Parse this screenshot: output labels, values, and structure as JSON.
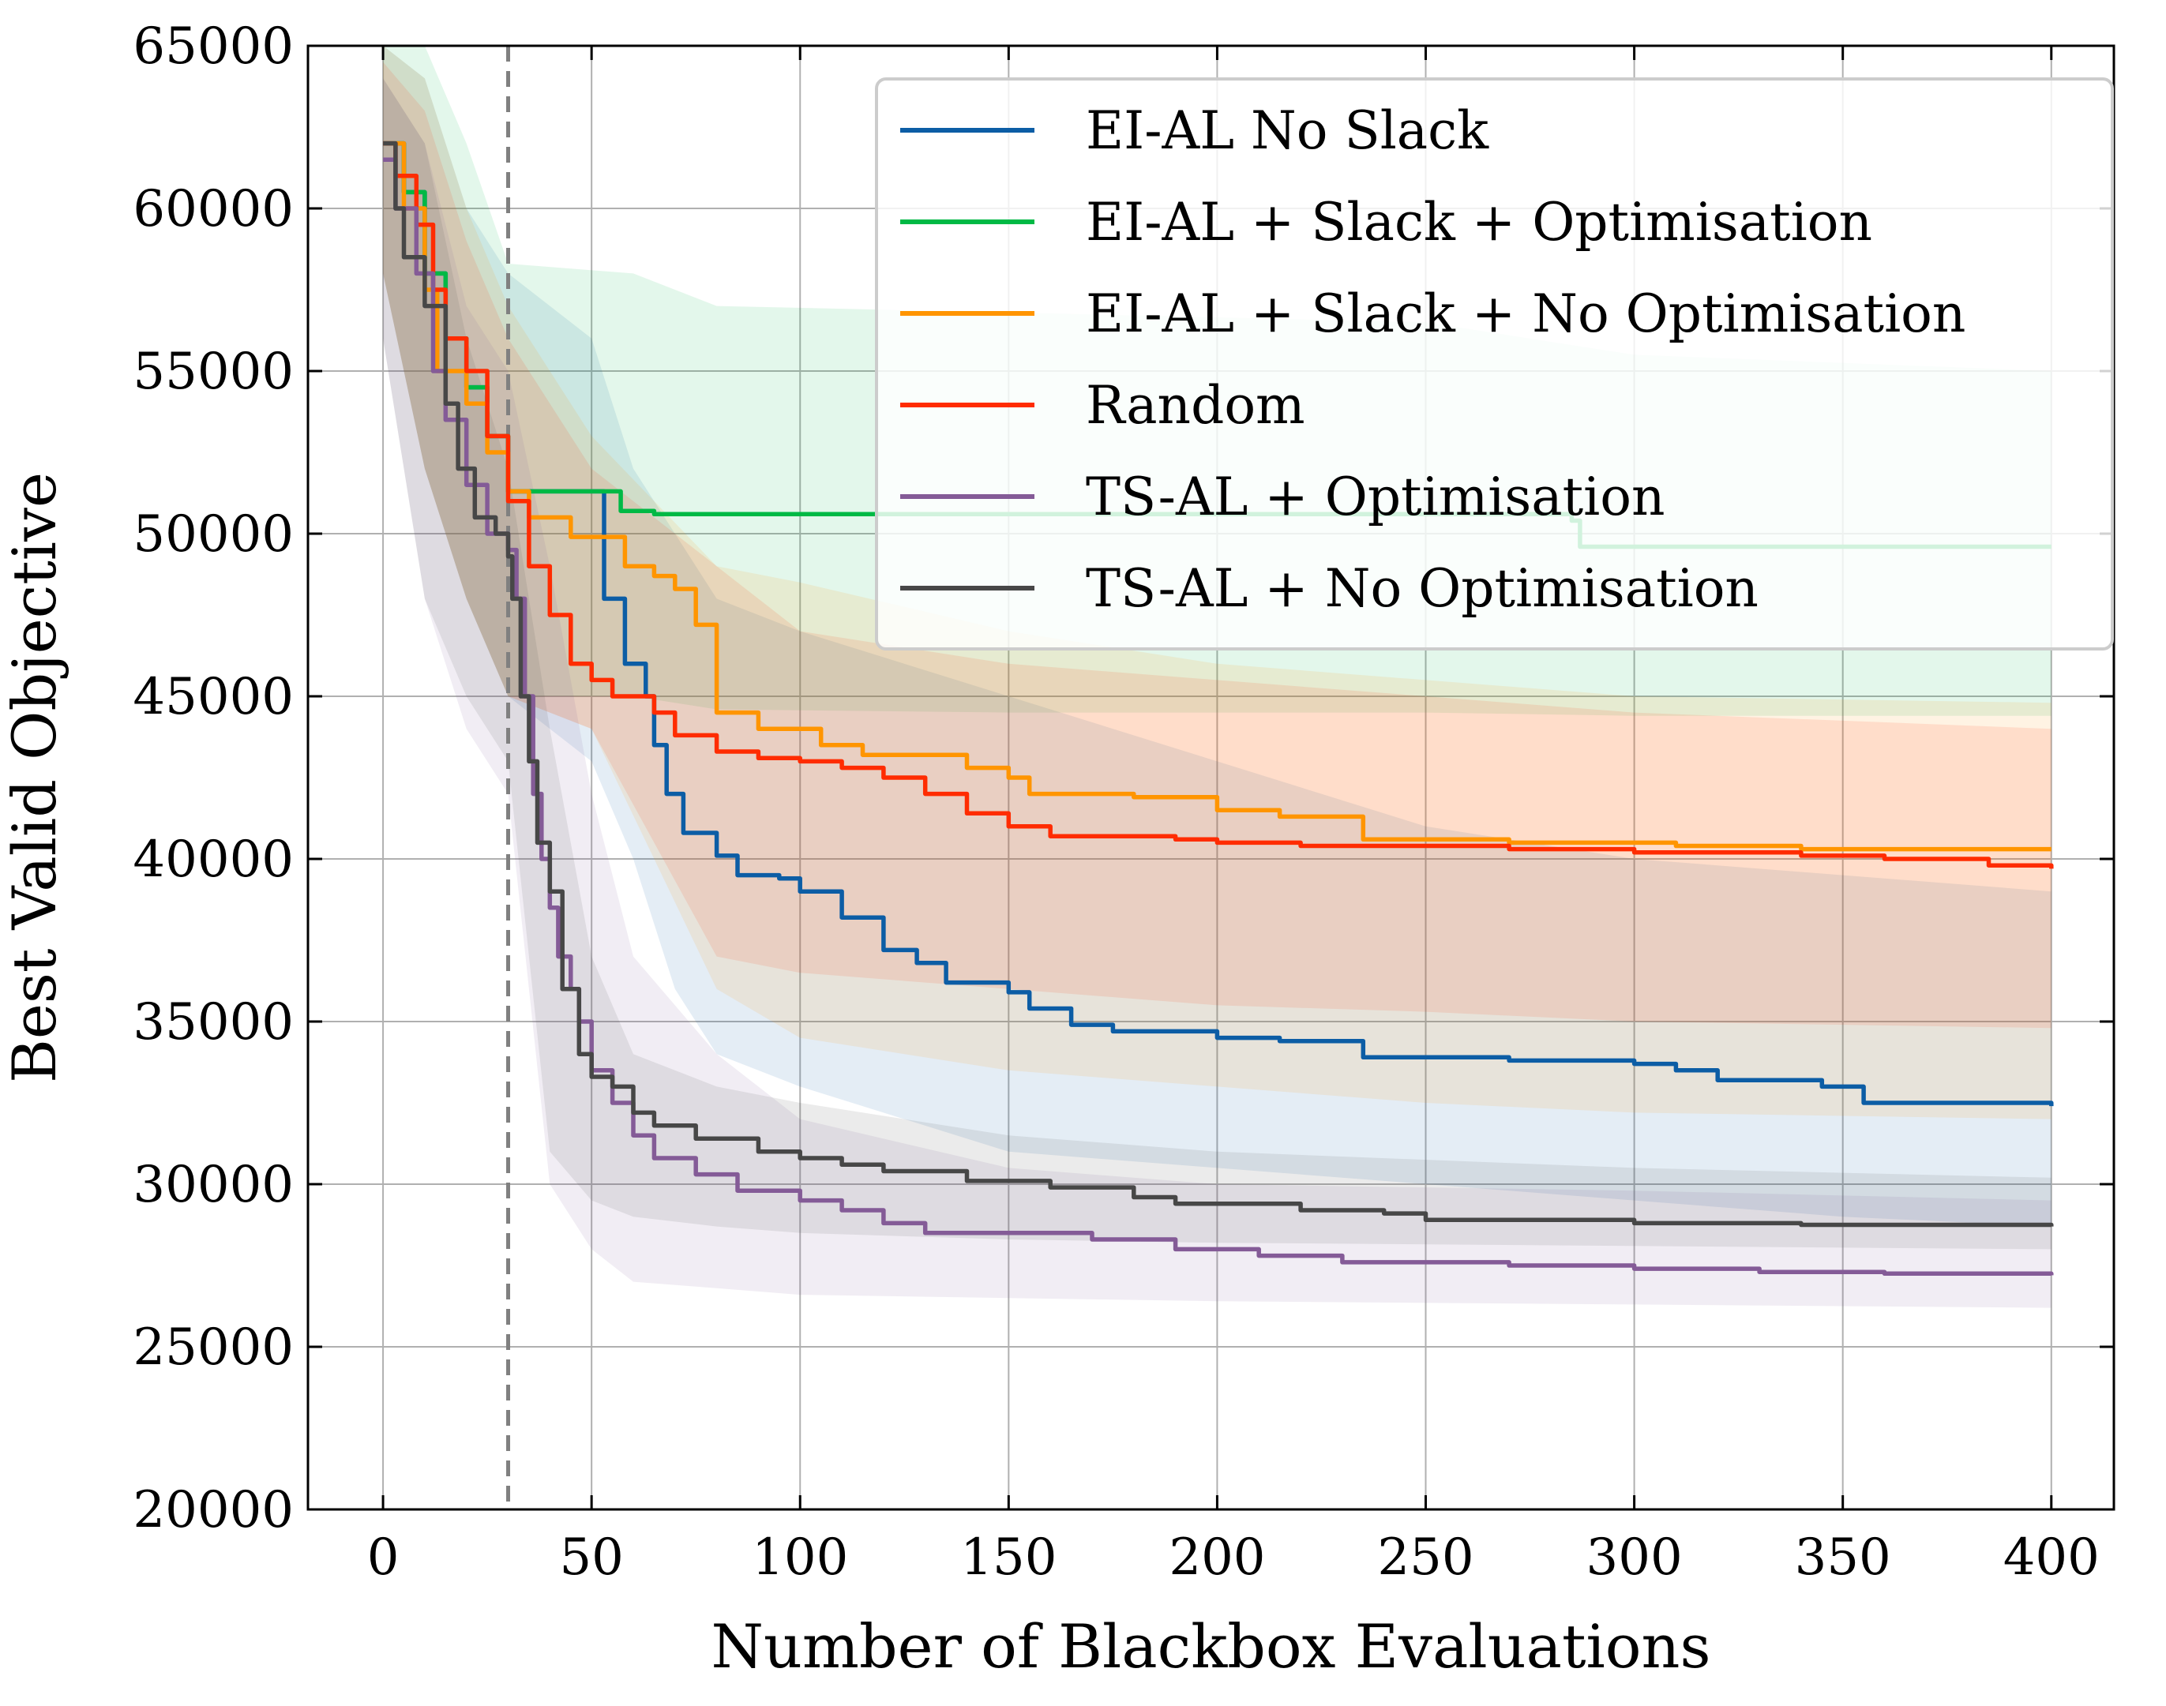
{
  "chart_data": {
    "type": "line",
    "title": "",
    "xlabel": "Number of Blackbox Evaluations",
    "ylabel": "Best Valid Objective",
    "xlim": [
      -18,
      415
    ],
    "ylim": [
      20000,
      65000
    ],
    "x_ticks": [
      0,
      50,
      100,
      150,
      200,
      250,
      300,
      350,
      400
    ],
    "y_ticks": [
      20000,
      25000,
      30000,
      35000,
      40000,
      45000,
      50000,
      55000,
      60000,
      65000
    ],
    "x_tick_labels": [
      "0",
      "50",
      "100",
      "150",
      "200",
      "250",
      "300",
      "350",
      "400"
    ],
    "y_tick_labels": [
      "20000",
      "25000",
      "30000",
      "35000",
      "40000",
      "45000",
      "50000",
      "55000",
      "60000",
      "65000"
    ],
    "grid": true,
    "legend_position": "top-right",
    "vline": {
      "x": 30,
      "style": "dashed",
      "color": "#808080"
    },
    "series": [
      {
        "name": "EI-AL No Slack",
        "color": "#0c5da5",
        "points": [
          [
            0,
            62000
          ],
          [
            5,
            60500
          ],
          [
            10,
            58000
          ],
          [
            15,
            56000
          ],
          [
            20,
            54500
          ],
          [
            25,
            53000
          ],
          [
            30,
            51300
          ],
          [
            50,
            51300
          ],
          [
            53,
            48000
          ],
          [
            58,
            46000
          ],
          [
            63,
            45000
          ],
          [
            65,
            43500
          ],
          [
            68,
            42000
          ],
          [
            72,
            40800
          ],
          [
            80,
            40100
          ],
          [
            85,
            39500
          ],
          [
            95,
            39400
          ],
          [
            100,
            39000
          ],
          [
            110,
            38200
          ],
          [
            120,
            37200
          ],
          [
            128,
            36800
          ],
          [
            135,
            36200
          ],
          [
            150,
            35900
          ],
          [
            155,
            35400
          ],
          [
            165,
            34900
          ],
          [
            175,
            34700
          ],
          [
            200,
            34500
          ],
          [
            215,
            34400
          ],
          [
            235,
            33900
          ],
          [
            270,
            33800
          ],
          [
            300,
            33700
          ],
          [
            310,
            33500
          ],
          [
            320,
            33200
          ],
          [
            345,
            33000
          ],
          [
            355,
            32500
          ],
          [
            400,
            32400
          ]
        ],
        "band": [
          [
            0,
            65000,
            58000
          ],
          [
            10,
            64000,
            52000
          ],
          [
            20,
            60000,
            48000
          ],
          [
            30,
            58000,
            45000
          ],
          [
            50,
            56000,
            43000
          ],
          [
            60,
            52000,
            40000
          ],
          [
            70,
            50000,
            36000
          ],
          [
            80,
            48000,
            34000
          ],
          [
            100,
            47000,
            33000
          ],
          [
            150,
            45000,
            31000
          ],
          [
            200,
            43000,
            30500
          ],
          [
            250,
            41000,
            30000
          ],
          [
            300,
            40000,
            29500
          ],
          [
            350,
            39500,
            29000
          ],
          [
            400,
            39000,
            28700
          ]
        ]
      },
      {
        "name": "EI-AL + Slack + Optimisation",
        "color": "#00b945",
        "points": [
          [
            0,
            62000
          ],
          [
            5,
            60500
          ],
          [
            10,
            58000
          ],
          [
            15,
            56000
          ],
          [
            20,
            54500
          ],
          [
            25,
            53000
          ],
          [
            30,
            51300
          ],
          [
            55,
            51300
          ],
          [
            57,
            50700
          ],
          [
            65,
            50600
          ],
          [
            120,
            50600
          ],
          [
            140,
            50600
          ],
          [
            285,
            50400
          ],
          [
            287,
            49600
          ],
          [
            400,
            49600
          ]
        ],
        "band": [
          [
            0,
            65000,
            58000
          ],
          [
            10,
            65000,
            52000
          ],
          [
            20,
            62000,
            48000
          ],
          [
            30,
            58300,
            45000
          ],
          [
            60,
            58000,
            45000
          ],
          [
            80,
            57000,
            44600
          ],
          [
            150,
            56800,
            44500
          ],
          [
            250,
            56500,
            44500
          ],
          [
            300,
            55500,
            44400
          ],
          [
            400,
            55000,
            44400
          ]
        ]
      },
      {
        "name": "EI-AL + Slack + No Optimisation",
        "color": "#ff9500",
        "points": [
          [
            0,
            62000
          ],
          [
            5,
            60000
          ],
          [
            10,
            57500
          ],
          [
            13,
            55000
          ],
          [
            20,
            54000
          ],
          [
            25,
            52500
          ],
          [
            30,
            51300
          ],
          [
            35,
            50500
          ],
          [
            45,
            49900
          ],
          [
            50,
            49900
          ],
          [
            58,
            49000
          ],
          [
            65,
            48700
          ],
          [
            70,
            48300
          ],
          [
            75,
            47200
          ],
          [
            80,
            44500
          ],
          [
            90,
            44000
          ],
          [
            105,
            43500
          ],
          [
            115,
            43200
          ],
          [
            140,
            42800
          ],
          [
            150,
            42500
          ],
          [
            155,
            42000
          ],
          [
            180,
            41900
          ],
          [
            200,
            41500
          ],
          [
            215,
            41300
          ],
          [
            235,
            40600
          ],
          [
            270,
            40500
          ],
          [
            310,
            40400
          ],
          [
            340,
            40300
          ],
          [
            400,
            40300
          ]
        ],
        "band": [
          [
            0,
            65000,
            58000
          ],
          [
            10,
            64000,
            52000
          ],
          [
            20,
            60000,
            48000
          ],
          [
            30,
            57000,
            45000
          ],
          [
            50,
            53000,
            44000
          ],
          [
            80,
            49000,
            36000
          ],
          [
            100,
            48500,
            34500
          ],
          [
            150,
            47000,
            33500
          ],
          [
            200,
            46000,
            33000
          ],
          [
            250,
            45500,
            32500
          ],
          [
            300,
            45000,
            32200
          ],
          [
            400,
            44800,
            32000
          ]
        ]
      },
      {
        "name": "Random",
        "color": "#ff2c00",
        "points": [
          [
            0,
            62000
          ],
          [
            3,
            61000
          ],
          [
            8,
            59500
          ],
          [
            12,
            57500
          ],
          [
            15,
            56000
          ],
          [
            20,
            55000
          ],
          [
            25,
            53000
          ],
          [
            30,
            51000
          ],
          [
            35,
            49000
          ],
          [
            40,
            47500
          ],
          [
            45,
            46000
          ],
          [
            50,
            45500
          ],
          [
            55,
            45000
          ],
          [
            65,
            44500
          ],
          [
            70,
            43800
          ],
          [
            80,
            43300
          ],
          [
            90,
            43100
          ],
          [
            100,
            43000
          ],
          [
            110,
            42800
          ],
          [
            120,
            42500
          ],
          [
            130,
            42000
          ],
          [
            140,
            41400
          ],
          [
            150,
            41000
          ],
          [
            160,
            40700
          ],
          [
            190,
            40600
          ],
          [
            200,
            40500
          ],
          [
            220,
            40400
          ],
          [
            270,
            40300
          ],
          [
            300,
            40200
          ],
          [
            340,
            40100
          ],
          [
            360,
            40000
          ],
          [
            385,
            39800
          ],
          [
            400,
            39700
          ]
        ],
        "band": [
          [
            0,
            64500,
            58000
          ],
          [
            10,
            63000,
            52000
          ],
          [
            20,
            59000,
            48000
          ],
          [
            30,
            56000,
            45000
          ],
          [
            50,
            52000,
            44000
          ],
          [
            80,
            49000,
            37000
          ],
          [
            100,
            47000,
            36500
          ],
          [
            150,
            46000,
            36000
          ],
          [
            200,
            45500,
            35500
          ],
          [
            250,
            45000,
            35300
          ],
          [
            300,
            44500,
            35000
          ],
          [
            400,
            44000,
            34800
          ]
        ]
      },
      {
        "name": "TS-AL + Optimisation",
        "color": "#845b97",
        "points": [
          [
            0,
            61500
          ],
          [
            3,
            60000
          ],
          [
            8,
            58000
          ],
          [
            12,
            55000
          ],
          [
            15,
            53500
          ],
          [
            20,
            51500
          ],
          [
            25,
            50000
          ],
          [
            30,
            49500
          ],
          [
            32,
            48000
          ],
          [
            34,
            45000
          ],
          [
            36,
            42000
          ],
          [
            38,
            40000
          ],
          [
            40,
            38500
          ],
          [
            42,
            37000
          ],
          [
            45,
            36000
          ],
          [
            47,
            35000
          ],
          [
            50,
            33500
          ],
          [
            55,
            32500
          ],
          [
            60,
            31500
          ],
          [
            65,
            30800
          ],
          [
            75,
            30300
          ],
          [
            85,
            29800
          ],
          [
            100,
            29500
          ],
          [
            110,
            29200
          ],
          [
            120,
            28800
          ],
          [
            130,
            28500
          ],
          [
            170,
            28300
          ],
          [
            190,
            28000
          ],
          [
            210,
            27800
          ],
          [
            230,
            27600
          ],
          [
            270,
            27500
          ],
          [
            300,
            27400
          ],
          [
            330,
            27300
          ],
          [
            360,
            27250
          ],
          [
            400,
            27200
          ]
        ],
        "band": [
          [
            0,
            64000,
            56000
          ],
          [
            10,
            62000,
            48000
          ],
          [
            20,
            57000,
            44000
          ],
          [
            30,
            55000,
            42000
          ],
          [
            40,
            49000,
            30000
          ],
          [
            50,
            42000,
            28000
          ],
          [
            60,
            37000,
            27000
          ],
          [
            80,
            34000,
            26800
          ],
          [
            100,
            32000,
            26600
          ],
          [
            150,
            30500,
            26500
          ],
          [
            200,
            30000,
            26400
          ],
          [
            300,
            29800,
            26300
          ],
          [
            400,
            29500,
            26200
          ]
        ]
      },
      {
        "name": "TS-AL + No Optimisation",
        "color": "#474747",
        "points": [
          [
            0,
            62000
          ],
          [
            3,
            60000
          ],
          [
            5,
            58500
          ],
          [
            10,
            57000
          ],
          [
            15,
            54000
          ],
          [
            18,
            52000
          ],
          [
            22,
            50500
          ],
          [
            27,
            50000
          ],
          [
            30,
            49300
          ],
          [
            31,
            48000
          ],
          [
            33,
            45000
          ],
          [
            35,
            43000
          ],
          [
            37,
            40500
          ],
          [
            40,
            39000
          ],
          [
            43,
            36000
          ],
          [
            47,
            34000
          ],
          [
            50,
            33300
          ],
          [
            55,
            33000
          ],
          [
            60,
            32200
          ],
          [
            65,
            31800
          ],
          [
            75,
            31400
          ],
          [
            90,
            31000
          ],
          [
            100,
            30800
          ],
          [
            110,
            30600
          ],
          [
            120,
            30400
          ],
          [
            140,
            30100
          ],
          [
            160,
            29900
          ],
          [
            180,
            29600
          ],
          [
            190,
            29400
          ],
          [
            220,
            29200
          ],
          [
            240,
            29100
          ],
          [
            250,
            28900
          ],
          [
            300,
            28800
          ],
          [
            340,
            28750
          ],
          [
            400,
            28700
          ]
        ],
        "band": [
          [
            0,
            64000,
            56000
          ],
          [
            10,
            62000,
            48000
          ],
          [
            20,
            56000,
            45000
          ],
          [
            30,
            52000,
            43000
          ],
          [
            40,
            44000,
            31000
          ],
          [
            50,
            37000,
            29500
          ],
          [
            60,
            34000,
            29000
          ],
          [
            80,
            33000,
            28700
          ],
          [
            100,
            32500,
            28500
          ],
          [
            150,
            31500,
            28300
          ],
          [
            200,
            31000,
            28200
          ],
          [
            300,
            30500,
            28100
          ],
          [
            400,
            30200,
            28000
          ]
        ]
      }
    ]
  }
}
